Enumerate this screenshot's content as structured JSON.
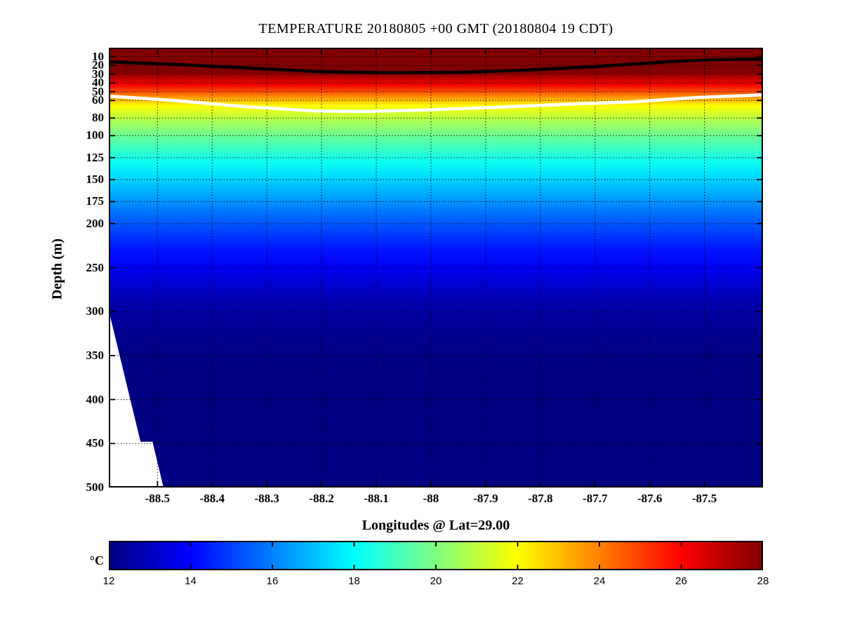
{
  "title": "TEMPERATURE 20180805 +00 GMT (20180804 19 CDT)",
  "axes": {
    "x": {
      "label": "Longitudes @ Lat=29.00"
    },
    "y": {
      "label": "Depth (m)"
    }
  },
  "colors": {
    "background": "#ffffff",
    "axis": "#000000",
    "grid": "#000000",
    "contour_upper": "#000000",
    "contour_lower": "#ffffff",
    "no_data": "#ffffff",
    "jet_min": "#000080",
    "jet_max": "#800000"
  },
  "chart_data": {
    "type": "heatmap",
    "title": "TEMPERATURE 20180805 +00 GMT (20180804 19 CDT)",
    "xlabel": "Longitudes @ Lat=29.00",
    "ylabel": "Depth (m)",
    "latitude": "29.00",
    "x_range": [
      -88.589,
      -87.393
    ],
    "y_range": [
      0,
      500
    ],
    "x_ticks": [
      -88.5,
      -88.4,
      -88.3,
      -88.2,
      -88.1,
      -88.0,
      -87.9,
      -87.8,
      -87.7,
      -87.6,
      -87.5
    ],
    "x_tick_labels": [
      "-88.5",
      "-88.4",
      "-88.3",
      "-88.2",
      "-88.1",
      "-88",
      "-87.9",
      "-87.8",
      "-87.7",
      "-87.6",
      "-87.5"
    ],
    "y_ticks": [
      10,
      20,
      30,
      40,
      50,
      60,
      80,
      100,
      125,
      150,
      175,
      200,
      250,
      300,
      350,
      400,
      450,
      500
    ],
    "y_tick_labels": [
      "10",
      "20",
      "30",
      "40",
      "50",
      "60",
      "80",
      "100",
      "125",
      "150",
      "175",
      "200",
      "250",
      "300",
      "350",
      "400",
      "450",
      "500"
    ],
    "grid": true,
    "grid_style": "dotted",
    "colormap": "jet",
    "colorbar": {
      "unit": "°C",
      "range": [
        12,
        28
      ],
      "ticks": [
        12,
        14,
        16,
        18,
        20,
        22,
        24,
        26,
        28
      ],
      "tick_labels": [
        "12",
        "14",
        "16",
        "18",
        "20",
        "22",
        "24",
        "26",
        "28"
      ],
      "position": "bottom"
    },
    "temperature_profile_depth_degC": [
      [
        0,
        29.5
      ],
      [
        12,
        28.8
      ],
      [
        22,
        28.2
      ],
      [
        28,
        28.0
      ],
      [
        35,
        27.0
      ],
      [
        42,
        26.2
      ],
      [
        50,
        24.8
      ],
      [
        57,
        23.5
      ],
      [
        63,
        22.5
      ],
      [
        66,
        22.0
      ],
      [
        75,
        21.3
      ],
      [
        85,
        20.6
      ],
      [
        100,
        19.7
      ],
      [
        115,
        18.9
      ],
      [
        130,
        18.2
      ],
      [
        145,
        17.5
      ],
      [
        160,
        16.9
      ],
      [
        175,
        16.3
      ],
      [
        190,
        15.7
      ],
      [
        210,
        15.0
      ],
      [
        230,
        14.3
      ],
      [
        250,
        13.8
      ],
      [
        270,
        13.2
      ],
      [
        290,
        12.7
      ],
      [
        310,
        12.4
      ],
      [
        340,
        12.1
      ],
      [
        380,
        11.95
      ],
      [
        500,
        11.85
      ]
    ],
    "contours": [
      {
        "name": "28C-isotherm",
        "value_degC": 28,
        "color": "#000000",
        "width": 4.5,
        "points_lon_depth": [
          [
            -88.59,
            16
          ],
          [
            -88.47,
            19
          ],
          [
            -88.34,
            23
          ],
          [
            -88.21,
            27
          ],
          [
            -88.08,
            28.5
          ],
          [
            -87.95,
            28
          ],
          [
            -87.83,
            25.5
          ],
          [
            -87.7,
            21.5
          ],
          [
            -87.57,
            16
          ],
          [
            -87.48,
            13.5
          ],
          [
            -87.39,
            13
          ]
        ]
      },
      {
        "name": "22C-isotherm",
        "value_degC": 22,
        "color": "#ffffff",
        "width": 4.5,
        "points_lon_depth": [
          [
            -88.59,
            55
          ],
          [
            -88.47,
            60
          ],
          [
            -88.34,
            67
          ],
          [
            -88.21,
            72
          ],
          [
            -88.12,
            72.5
          ],
          [
            -88.02,
            71
          ],
          [
            -87.89,
            68
          ],
          [
            -87.76,
            64.5
          ],
          [
            -87.63,
            61.5
          ],
          [
            -87.51,
            56.5
          ],
          [
            -87.39,
            53.5
          ]
        ]
      }
    ],
    "no_data_region_lon_depth": [
      [
        -88.589,
        299
      ],
      [
        -88.531,
        448
      ],
      [
        -88.509,
        448
      ],
      [
        -88.489,
        500
      ],
      [
        -88.589,
        500
      ]
    ]
  }
}
